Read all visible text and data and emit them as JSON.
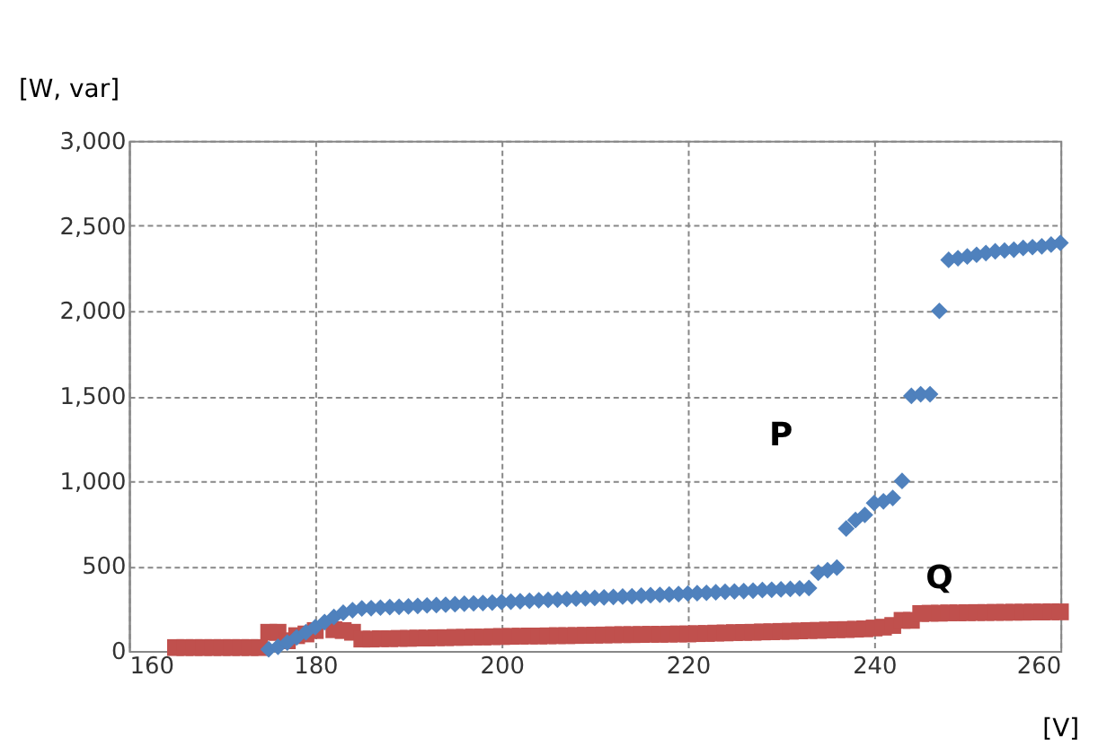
{
  "chart_data": {
    "type": "scatter",
    "xlabel": "[V]",
    "ylabel": "[W, var]",
    "xlim": [
      160,
      260
    ],
    "xticks": [
      160,
      180,
      200,
      220,
      240,
      260
    ],
    "ylim": [
      0,
      3000
    ],
    "yticks": [
      0,
      500,
      {
        "value": 1000,
        "label": "1,000"
      },
      {
        "value": 1500,
        "label": "1,500"
      },
      {
        "value": 2000,
        "label": "2,000"
      },
      {
        "value": 2500,
        "label": "2,500"
      },
      {
        "value": 3000,
        "label": "3,000"
      }
    ],
    "grid": true,
    "annotations": [
      "P",
      "Q"
    ],
    "series": [
      {
        "color": "#c0504d",
        "marker": "square",
        "x": [
          165,
          166,
          167,
          168,
          169,
          170,
          171,
          172,
          173,
          174,
          175,
          176,
          177,
          178,
          179,
          180,
          182,
          183,
          184,
          185,
          186,
          187,
          188,
          189,
          190,
          191,
          192,
          193,
          194,
          195,
          196,
          197,
          198,
          199,
          200,
          201,
          202,
          203,
          204,
          205,
          206,
          207,
          208,
          209,
          210,
          211,
          212,
          213,
          214,
          215,
          216,
          217,
          218,
          219,
          220,
          221,
          222,
          223,
          224,
          225,
          226,
          227,
          228,
          229,
          230,
          231,
          232,
          233,
          234,
          235,
          236,
          237,
          238,
          239,
          240,
          241,
          242,
          243,
          244,
          245,
          246,
          247,
          248,
          249,
          250,
          251,
          252,
          253,
          254,
          255,
          256,
          257,
          258,
          259,
          260
        ],
        "values": [
          20,
          20,
          20,
          20,
          20,
          20,
          20,
          20,
          20,
          20,
          110,
          110,
          60,
          90,
          100,
          120,
          125,
          120,
          110,
          70,
          70,
          72,
          72,
          74,
          74,
          76,
          76,
          78,
          78,
          80,
          80,
          82,
          82,
          84,
          85,
          86,
          87,
          88,
          88,
          89,
          90,
          90,
          91,
          92,
          93,
          94,
          95,
          96,
          96,
          97,
          98,
          98,
          99,
          100,
          100,
          102,
          103,
          105,
          106,
          108,
          109,
          110,
          112,
          113,
          115,
          116,
          118,
          120,
          121,
          123,
          125,
          126,
          128,
          130,
          135,
          140,
          150,
          180,
          180,
          220,
          222,
          222,
          224,
          224,
          225,
          226,
          226,
          227,
          227,
          228,
          228,
          229,
          229,
          230,
          230
        ]
      },
      {
        "color": "#4f81bd",
        "marker": "diamond",
        "x": [
          175,
          176,
          177,
          178,
          179,
          180,
          181,
          182,
          183,
          184,
          185,
          186,
          187,
          188,
          189,
          190,
          191,
          192,
          193,
          194,
          195,
          196,
          197,
          198,
          199,
          200,
          201,
          202,
          203,
          204,
          205,
          206,
          207,
          208,
          209,
          210,
          211,
          212,
          213,
          214,
          215,
          216,
          217,
          218,
          219,
          220,
          221,
          222,
          223,
          224,
          225,
          226,
          227,
          228,
          229,
          230,
          231,
          232,
          233,
          234,
          235,
          236,
          237,
          238,
          239,
          240,
          241,
          242,
          243,
          244,
          245,
          246,
          247,
          248,
          249,
          250,
          251,
          252,
          253,
          254,
          255,
          256,
          257,
          258,
          259,
          260
        ],
        "values": [
          10,
          25,
          50,
          80,
          110,
          140,
          170,
          200,
          225,
          240,
          250,
          252,
          255,
          258,
          260,
          262,
          265,
          268,
          270,
          272,
          275,
          278,
          280,
          282,
          285,
          288,
          290,
          292,
          295,
          298,
          300,
          302,
          305,
          308,
          310,
          312,
          315,
          318,
          320,
          322,
          325,
          328,
          330,
          332,
          335,
          338,
          340,
          342,
          345,
          348,
          350,
          352,
          355,
          358,
          360,
          362,
          365,
          368,
          370,
          460,
          475,
          490,
          720,
          770,
          800,
          870,
          880,
          900,
          1000,
          1500,
          1510,
          1510,
          2000,
          2300,
          2310,
          2320,
          2330,
          2340,
          2350,
          2355,
          2360,
          2370,
          2375,
          2380,
          2390,
          2400
        ]
      }
    ]
  }
}
